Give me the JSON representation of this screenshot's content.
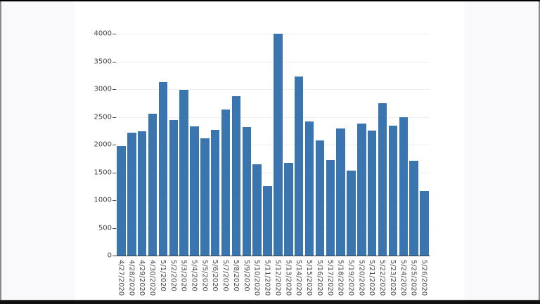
{
  "chart_data": {
    "type": "bar",
    "title": "",
    "xlabel": "",
    "ylabel": "",
    "ylim": [
      0,
      4000
    ],
    "yticks": [
      0,
      500,
      1000,
      1500,
      2000,
      2500,
      3000,
      3500,
      4000
    ],
    "grid": true,
    "bar_color": "#3a75b0",
    "categories": [
      "4/27/2020",
      "4/28/2020",
      "4/29/2020",
      "4/30/2020",
      "5/1/2020",
      "5/2/2020",
      "5/3/2020",
      "5/4/2020",
      "5/5/2020",
      "5/6/2020",
      "5/7/2020",
      "5/8/2020",
      "5/9/2020",
      "5/10/2020",
      "5/11/2020",
      "5/12/2020",
      "5/13/2020",
      "5/14/2020",
      "5/15/2020",
      "5/16/2020",
      "5/17/2020",
      "5/18/2020",
      "5/19/2020",
      "5/20/2020",
      "5/21/2020",
      "5/22/2020",
      "5/23/2020",
      "5/24/2020",
      "5/25/2020",
      "5/26/2020"
    ],
    "values": [
      1975,
      2215,
      2240,
      2557,
      3127,
      2443,
      2987,
      2330,
      2114,
      2265,
      2633,
      2873,
      2316,
      1650,
      1257,
      4005,
      1671,
      3224,
      2422,
      2076,
      1726,
      2287,
      1536,
      2380,
      2257,
      2747,
      2342,
      2498,
      1705,
      1169
    ]
  }
}
